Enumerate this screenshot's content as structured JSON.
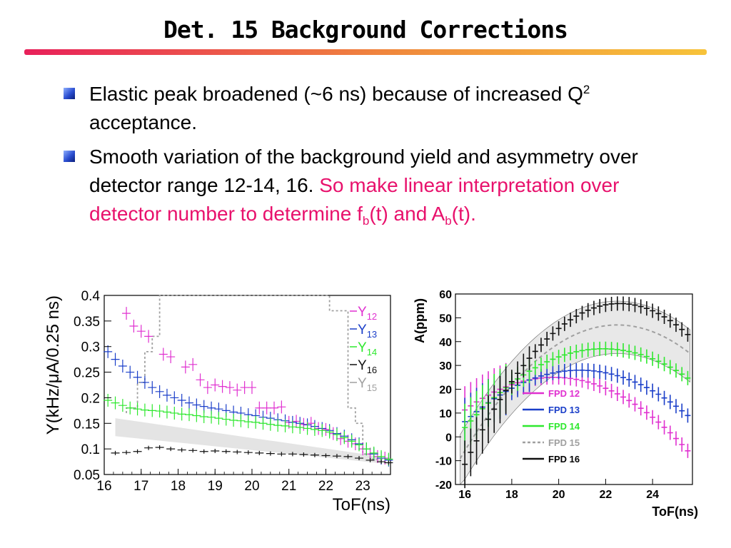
{
  "slide": {
    "title": "Det. 15 Background Corrections",
    "bullets": [
      {
        "text": "Elastic peak broadened (~6 ns) because of increased Q",
        "sup": "2",
        "tail": " acceptance."
      },
      {
        "text_black": "Smooth variation of the background yield and asymmetry over detector range 12-14, 16. ",
        "text_pink_1": "So make linear interpretation over detector number to determine f",
        "sub_1": "b",
        "text_pink_2": "(t) and A",
        "sub_2": "b",
        "text_pink_3": "(t)."
      }
    ]
  },
  "colors": {
    "pink": "#e030d0",
    "blue": "#1b3fc9",
    "green": "#2ee82e",
    "black": "#111111",
    "gray": "#a0a0a0",
    "band": "#e4e4e4"
  },
  "chart_data": [
    {
      "type": "scatter",
      "title": "",
      "xlabel": "ToF(ns)",
      "ylabel": "Y(kHz/μA/0.25 ns)",
      "xlim": [
        16,
        23.75
      ],
      "ylim": [
        0.05,
        0.4
      ],
      "xticks": [
        "16",
        "17",
        "18",
        "19",
        "20",
        "21",
        "22",
        "23"
      ],
      "yticks": [
        "0.05",
        "0.1",
        "0.15",
        "0.2",
        "0.25",
        "0.3",
        "0.35",
        "0.4"
      ],
      "legend": {
        "position": "top-right",
        "entries": [
          {
            "label": "Y",
            "sub": "12",
            "color": "#e030d0"
          },
          {
            "label": "Y",
            "sub": "13",
            "color": "#1b3fc9"
          },
          {
            "label": "Y",
            "sub": "14",
            "color": "#2ee82e"
          },
          {
            "label": "Y",
            "sub": "16",
            "color": "#111111"
          },
          {
            "label": "Y",
            "sub": "15",
            "color": "#a0a0a0"
          }
        ]
      },
      "series": [
        {
          "name": "Y12",
          "x": [
            16.6,
            16.8,
            17.0,
            17.2,
            17.6,
            17.8,
            18.2,
            18.4,
            18.6,
            18.8,
            19.0,
            19.2,
            19.4,
            19.6,
            19.8,
            20.0,
            20.2,
            20.4,
            20.6,
            20.8,
            21.0,
            21.2,
            21.4,
            21.6,
            21.8,
            22.0,
            22.2,
            22.4,
            22.6,
            22.8,
            23.0,
            23.2,
            23.4,
            23.6
          ],
          "y": [
            0.365,
            0.34,
            0.33,
            0.32,
            0.285,
            0.28,
            0.26,
            0.265,
            0.235,
            0.22,
            0.225,
            0.222,
            0.22,
            0.215,
            0.22,
            0.22,
            0.18,
            0.18,
            0.18,
            0.182,
            0.152,
            0.154,
            0.148,
            0.15,
            0.14,
            0.138,
            0.13,
            0.12,
            0.115,
            0.11,
            0.1,
            0.09,
            0.085,
            0.082
          ]
        },
        {
          "name": "Y13",
          "x": [
            16.1,
            16.3,
            16.5,
            16.7,
            16.9,
            17.1,
            17.3,
            17.5,
            17.7,
            17.9,
            18.1,
            18.3,
            18.5,
            18.7,
            18.9,
            19.1,
            19.3,
            19.5,
            19.7,
            19.9,
            20.1,
            20.3,
            20.5,
            20.7,
            20.9,
            21.1,
            21.3,
            21.5,
            21.7,
            21.9,
            22.1,
            22.3,
            22.5,
            22.7,
            22.9,
            23.1,
            23.3,
            23.5,
            23.7
          ],
          "y": [
            0.29,
            0.275,
            0.262,
            0.25,
            0.24,
            0.23,
            0.22,
            0.212,
            0.205,
            0.2,
            0.195,
            0.19,
            0.186,
            0.183,
            0.18,
            0.178,
            0.175,
            0.172,
            0.17,
            0.167,
            0.165,
            0.162,
            0.16,
            0.157,
            0.155,
            0.152,
            0.15,
            0.147,
            0.144,
            0.14,
            0.136,
            0.13,
            0.125,
            0.118,
            0.11,
            0.1,
            0.09,
            0.082,
            0.078
          ]
        },
        {
          "name": "Y14",
          "x": [
            16.1,
            16.3,
            16.5,
            16.7,
            16.9,
            17.1,
            17.3,
            17.5,
            17.7,
            17.9,
            18.1,
            18.3,
            18.5,
            18.7,
            18.9,
            19.1,
            19.3,
            19.5,
            19.7,
            19.9,
            20.1,
            20.3,
            20.5,
            20.7,
            20.9,
            21.1,
            21.3,
            21.5,
            21.7,
            21.9,
            22.1,
            22.3,
            22.5,
            22.7,
            22.9,
            23.1,
            23.3,
            23.5,
            23.7
          ],
          "y": [
            0.195,
            0.19,
            0.185,
            0.18,
            0.178,
            0.176,
            0.175,
            0.174,
            0.172,
            0.17,
            0.168,
            0.167,
            0.165,
            0.163,
            0.162,
            0.16,
            0.158,
            0.156,
            0.155,
            0.153,
            0.152,
            0.15,
            0.148,
            0.146,
            0.145,
            0.143,
            0.142,
            0.14,
            0.138,
            0.136,
            0.133,
            0.128,
            0.122,
            0.115,
            0.108,
            0.1,
            0.092,
            0.085,
            0.08
          ]
        },
        {
          "name": "Y16",
          "x": [
            16.3,
            16.6,
            16.9,
            17.2,
            17.5,
            17.8,
            18.1,
            18.4,
            18.7,
            19.0,
            19.3,
            19.6,
            19.9,
            20.2,
            20.5,
            20.8,
            21.1,
            21.4,
            21.7,
            22.0,
            22.3,
            22.6,
            22.9,
            23.2,
            23.5,
            23.7
          ],
          "y": [
            0.092,
            0.093,
            0.095,
            0.102,
            0.103,
            0.1,
            0.098,
            0.097,
            0.095,
            0.096,
            0.095,
            0.094,
            0.093,
            0.092,
            0.091,
            0.09,
            0.09,
            0.089,
            0.088,
            0.087,
            0.086,
            0.085,
            0.082,
            0.078,
            0.075,
            0.073
          ]
        }
      ],
      "band": {
        "x": [
          16.3,
          23.5
        ],
        "upper": [
          0.16,
          0.085
        ],
        "lower": [
          0.125,
          0.072
        ]
      },
      "dashed_y15": {
        "x": [
          16.6,
          16.6,
          16.9,
          16.9,
          17.1,
          17.1,
          17.3,
          17.3,
          17.5,
          17.5,
          22.1,
          22.1,
          22.6,
          22.6,
          22.8,
          22.8,
          23.0,
          23.0,
          23.2,
          23.2,
          23.75
        ],
        "y": [
          0.17,
          0.18,
          0.18,
          0.23,
          0.23,
          0.29,
          0.29,
          0.32,
          0.32,
          0.4,
          0.4,
          0.37,
          0.37,
          0.18,
          0.18,
          0.15,
          0.15,
          0.09,
          0.09,
          0.08,
          0.08
        ]
      }
    },
    {
      "type": "line",
      "title": "",
      "xlabel": "ToF(ns)",
      "ylabel": "A(ppm)",
      "xlim": [
        15.6,
        25.7
      ],
      "ylim": [
        -20,
        60
      ],
      "xticks": [
        "16",
        "18",
        "20",
        "22",
        "24"
      ],
      "yticks": [
        "-20",
        "-10",
        "0",
        "10",
        "20",
        "30",
        "40",
        "50",
        "60"
      ],
      "legend": {
        "position": "bottom-center",
        "entries": [
          {
            "label": "FPD 12",
            "color": "#e030d0",
            "style": "solid"
          },
          {
            "label": "FPD 13",
            "color": "#1b3fc9",
            "style": "solid"
          },
          {
            "label": "FPD 14",
            "color": "#2ee82e",
            "style": "solid"
          },
          {
            "label": "FPD 15",
            "color": "#a0a0a0",
            "style": "dashed"
          },
          {
            "label": "FPD 16",
            "color": "#111111",
            "style": "solid"
          }
        ]
      },
      "series": [
        {
          "name": "FPD 12",
          "peak_x": 19.8,
          "peak_y": 25,
          "curv": 0.95
        },
        {
          "name": "FPD 13",
          "peak_x": 20.9,
          "peak_y": 28,
          "curv": 0.9
        },
        {
          "name": "FPD 14",
          "peak_x": 21.9,
          "peak_y": 37,
          "curv": 0.95
        },
        {
          "name": "FPD 15",
          "peak_x": 22.5,
          "peak_y": 47,
          "curv": 1.25
        },
        {
          "name": "FPD 16",
          "peak_x": 22.6,
          "peak_y": 56,
          "curv": 1.55
        }
      ],
      "x_range": [
        15.8,
        25.6
      ]
    }
  ]
}
